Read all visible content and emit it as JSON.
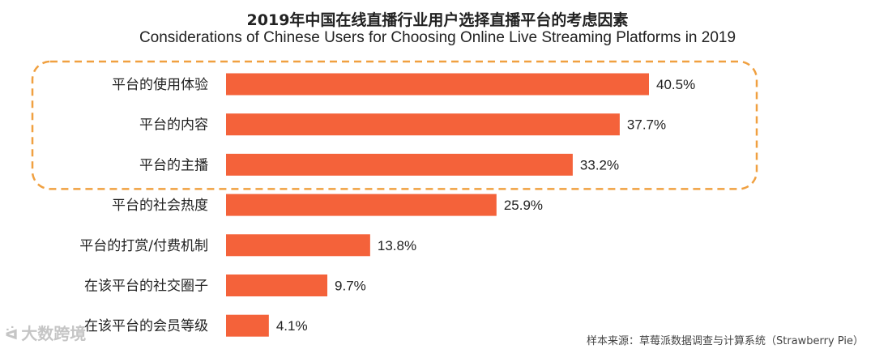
{
  "title_cn": "2019年中国在线直播行业用户选择直播平台的考虑因素",
  "title_en": "Considerations of Chinese Users for Choosing Online Live Streaming Platforms in 2019",
  "source": "样本来源：草莓派数据调查与计算系统（Strawberry Pie）",
  "watermark": "大数跨境",
  "colors": {
    "bar": "#F4623A",
    "highlight_border": "#F0A040",
    "text": "#222222"
  },
  "chart_data": {
    "type": "bar",
    "orientation": "horizontal",
    "categories": [
      "平台的使用体验",
      "平台的内容",
      "平台的主播",
      "平台的社会热度",
      "平台的打赏/付费机制",
      "在该平台的社交圈子",
      "在该平台的会员等级"
    ],
    "values": [
      40.5,
      37.7,
      33.2,
      25.9,
      13.8,
      9.7,
      4.1
    ],
    "value_labels": [
      "40.5%",
      "37.7%",
      "33.2%",
      "25.9%",
      "13.8%",
      "9.7%",
      "4.1%"
    ],
    "unit": "%",
    "highlighted_categories": [
      "平台的使用体验",
      "平台的内容",
      "平台的主播"
    ],
    "xlim": [
      0,
      40.5
    ],
    "grid": false,
    "legend": "none"
  }
}
